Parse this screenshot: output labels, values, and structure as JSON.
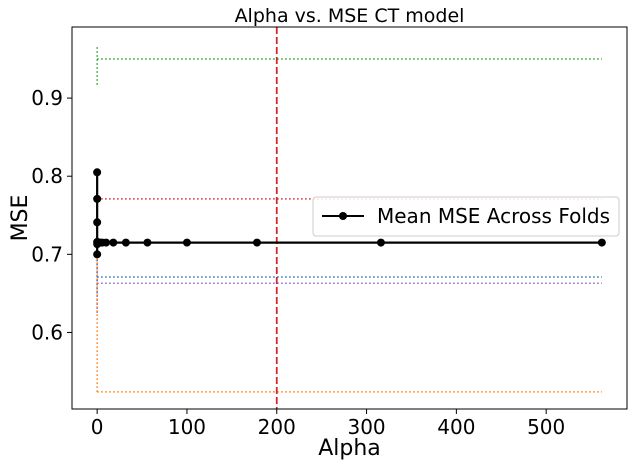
{
  "chart_data": {
    "type": "line",
    "title": "Alpha vs. MSE CT model",
    "xlabel": "Alpha",
    "ylabel": "MSE",
    "xlim": [
      -28,
      590
    ],
    "ylim": [
      0.502,
      0.991
    ],
    "xticks": [
      0,
      100,
      200,
      300,
      400,
      500
    ],
    "yticks": [
      0.6,
      0.7,
      0.8,
      0.9
    ],
    "xtick_labels": [
      "0",
      "100",
      "200",
      "300",
      "400",
      "500"
    ],
    "ytick_labels": [
      "0.6",
      "0.7",
      "0.8",
      "0.9"
    ],
    "grid": false,
    "legend": {
      "position": "center-right",
      "entries": [
        "Mean MSE Across Folds"
      ]
    },
    "vline": {
      "x": 200,
      "color": "#d62728",
      "style": "dashed"
    },
    "series": [
      {
        "name": "Mean MSE Across Folds",
        "color": "#000000",
        "marker": "circle",
        "x": [
          0.0,
          0.01,
          0.02,
          0.03,
          0.06,
          0.1,
          0.18,
          0.32,
          0.56,
          1.0,
          1.8,
          3.2,
          5.6,
          10,
          18,
          32,
          56,
          100,
          178,
          316,
          562
        ],
        "y": [
          0.805,
          0.771,
          0.741,
          0.7,
          0.713,
          0.716,
          0.715,
          0.715,
          0.715,
          0.715,
          0.715,
          0.715,
          0.715,
          0.715,
          0.715,
          0.715,
          0.715,
          0.715,
          0.715,
          0.715,
          0.715
        ]
      }
    ],
    "fold_lines": [
      {
        "color": "#2ca02c",
        "y": 0.95,
        "spike_y": [
          0.917,
          0.968
        ]
      },
      {
        "color": "#d62728",
        "y": 0.771,
        "spike_y": [
          0.771,
          0.771
        ]
      },
      {
        "color": "#1f77b4",
        "y": 0.671,
        "spike_y": [
          0.65,
          0.7
        ]
      },
      {
        "color": "#9467bd",
        "y": 0.663,
        "spike_y": [
          0.625,
          0.7
        ]
      },
      {
        "color": "#ff7f0e",
        "y": 0.524,
        "spike_y": [
          0.524,
          0.7
        ]
      }
    ],
    "fold_x_range": [
      0,
      562
    ]
  }
}
